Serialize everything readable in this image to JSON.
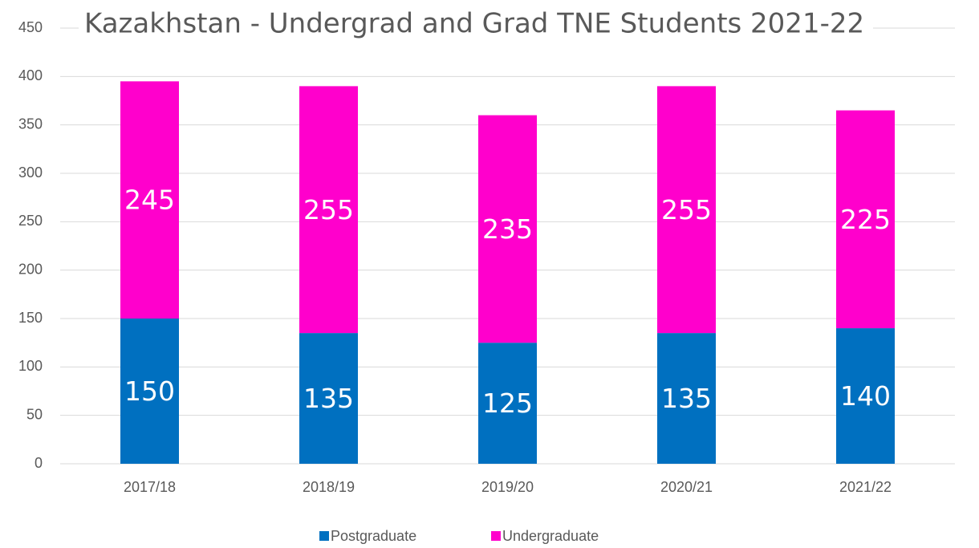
{
  "chart_data": {
    "type": "stacked_bar",
    "title": "Kazakhstan - Undergrad and Grad TNE Students 2021-22",
    "categories": [
      "2017/18",
      "2018/19",
      "2019/20",
      "2020/21",
      "2021/22"
    ],
    "series": [
      {
        "name": "Postgraduate",
        "color": "#0070c0",
        "values": [
          150,
          135,
          125,
          135,
          140
        ]
      },
      {
        "name": "Undergraduate",
        "color": "#ff00cc",
        "values": [
          245,
          255,
          235,
          255,
          225
        ]
      }
    ],
    "ylim": [
      0,
      450
    ],
    "yticks": [
      0,
      50,
      100,
      150,
      200,
      250,
      300,
      350,
      400,
      450
    ],
    "grid": true,
    "legend": "bottom"
  }
}
